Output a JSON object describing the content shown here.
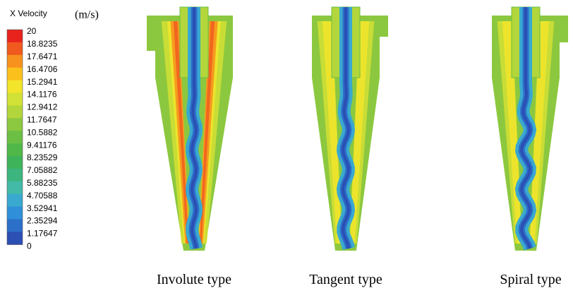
{
  "legend": {
    "title": "X Velocity",
    "unit": "(m/s)",
    "labels": [
      "20",
      "18.8235",
      "17.6471",
      "16.4706",
      "15.2941",
      "14.1176",
      "12.9412",
      "11.7647",
      "10.5882",
      "9.41176",
      "8.23529",
      "7.05882",
      "5.88235",
      "4.70588",
      "3.52941",
      "2.35294",
      "1.17647",
      "0"
    ],
    "colors": [
      "#e8231e",
      "#f05a1e",
      "#f7921e",
      "#fbc01c",
      "#f2e52a",
      "#d2e135",
      "#b2d63b",
      "#8cc83f",
      "#6cbf45",
      "#50b848",
      "#3fb35a",
      "#3db57f",
      "#43b9a8",
      "#3aa9d0",
      "#2f8fd8",
      "#2c6fc9",
      "#2b4fb3"
    ]
  },
  "panels": [
    {
      "label": "Involute type"
    },
    {
      "label": "Tangent type"
    },
    {
      "label": "Spiral type"
    }
  ]
}
